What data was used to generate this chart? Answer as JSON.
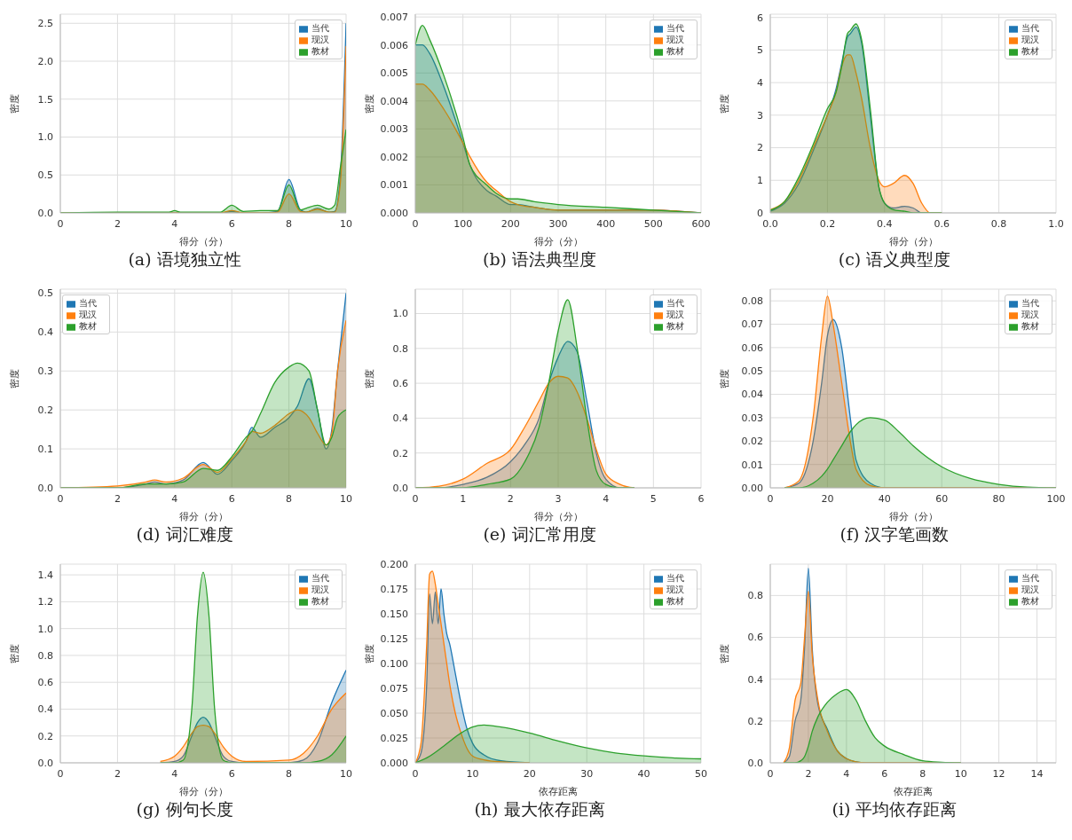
{
  "chart_data": [
    {
      "type": "area",
      "title": "(a) 语境独立性",
      "xlabel": "得分（分）",
      "ylabel": "密度",
      "xlim": [
        0,
        10
      ],
      "xticks": [
        0,
        2,
        4,
        6,
        8,
        10
      ],
      "ylim": [
        0,
        2.62
      ],
      "yticks": [
        {
          "value": 0,
          "label": "0.0"
        },
        {
          "value": 0.5,
          "label": "0.5"
        },
        {
          "value": 1,
          "label": "1.0"
        },
        {
          "value": 1.5,
          "label": "1.5"
        },
        {
          "value": 2,
          "label": "2.0"
        },
        {
          "value": 2.5,
          "label": "2.5"
        }
      ],
      "grid": true,
      "legend": "top right",
      "x": [
        0,
        2,
        3.8,
        4,
        4.2,
        5.6,
        6,
        6.4,
        7,
        7.6,
        8,
        8.4,
        8.6,
        9,
        9.4,
        9.6,
        9.8,
        10
      ],
      "series": [
        {
          "name": "当代",
          "color": "#1f77b4",
          "values": [
            0,
            0,
            0,
            0,
            0,
            0,
            0.02,
            0,
            0,
            0.02,
            0.44,
            0.04,
            0.01,
            0.06,
            0.01,
            0.02,
            0.5,
            2.5
          ]
        },
        {
          "name": "现汉",
          "color": "#ff7f0e",
          "values": [
            0,
            0,
            0,
            0,
            0,
            0,
            0.03,
            0,
            0,
            0.01,
            0.25,
            0.02,
            0.01,
            0.05,
            0.01,
            0.01,
            0.4,
            2.2
          ]
        },
        {
          "name": "教材",
          "color": "#2ca02c",
          "values": [
            0,
            0.01,
            0.01,
            0.03,
            0.01,
            0.01,
            0.1,
            0.02,
            0.03,
            0.03,
            0.37,
            0.04,
            0.06,
            0.1,
            0.05,
            0.1,
            0.6,
            1.1
          ]
        }
      ]
    },
    {
      "type": "area",
      "title": "(b) 语法典型度",
      "xlabel": "得分（分）",
      "ylabel": "密度",
      "xlim": [
        0,
        600
      ],
      "xticks": [
        0,
        100,
        200,
        300,
        400,
        500,
        600
      ],
      "ylim": [
        0,
        0.0071
      ],
      "yticks": [
        {
          "value": 0,
          "label": "0.000"
        },
        {
          "value": 0.001,
          "label": "0.001"
        },
        {
          "value": 0.002,
          "label": "0.002"
        },
        {
          "value": 0.003,
          "label": "0.003"
        },
        {
          "value": 0.004,
          "label": "0.004"
        },
        {
          "value": 0.005,
          "label": "0.005"
        },
        {
          "value": 0.006,
          "label": "0.006"
        },
        {
          "value": 0.007,
          "label": "0.007"
        }
      ],
      "grid": true,
      "legend": "top right",
      "x": [
        0,
        15,
        30,
        60,
        100,
        115,
        150,
        170,
        200,
        215,
        250,
        300,
        400,
        500,
        600
      ],
      "series": [
        {
          "name": "当代",
          "color": "#1f77b4",
          "values": [
            0.006,
            0.006,
            0.0057,
            0.0045,
            0.0025,
            0.0017,
            0.0008,
            0.0006,
            0.0003,
            0.0003,
            0.0002,
            0.0001,
            0.0001,
            0.0001,
            0
          ]
        },
        {
          "name": "现汉",
          "color": "#ff7f0e",
          "values": [
            0.0046,
            0.0046,
            0.0044,
            0.0037,
            0.0025,
            0.002,
            0.0011,
            0.0008,
            0.0004,
            0.0003,
            0.0002,
            0.0001,
            0.0001,
            0.0001,
            0
          ]
        },
        {
          "name": "教材",
          "color": "#2ca02c",
          "values": [
            0.006,
            0.0067,
            0.0062,
            0.0049,
            0.0027,
            0.0017,
            0.001,
            0.0007,
            0.0005,
            0.0005,
            0.0004,
            0.0003,
            0.0002,
            0.0001,
            0
          ]
        }
      ]
    },
    {
      "type": "area",
      "title": "(c) 语义典型度",
      "xlabel": "得分（分）",
      "ylabel": "密度",
      "xlim": [
        0,
        1
      ],
      "xticks": [
        {
          "value": 0,
          "label": "0.0"
        },
        {
          "value": 0.2,
          "label": "0.2"
        },
        {
          "value": 0.4,
          "label": "0.4"
        },
        {
          "value": 0.6,
          "label": "0.6"
        },
        {
          "value": 0.8,
          "label": "0.8"
        },
        {
          "value": 1,
          "label": "1.0"
        }
      ],
      "ylim": [
        0,
        6.1
      ],
      "yticks": [
        0,
        1,
        2,
        3,
        4,
        5,
        6
      ],
      "grid": true,
      "legend": "top right",
      "x": [
        0,
        0.05,
        0.1,
        0.15,
        0.2,
        0.23,
        0.25,
        0.27,
        0.28,
        0.3,
        0.32,
        0.35,
        0.38,
        0.4,
        0.43,
        0.47,
        0.5,
        0.53,
        0.56,
        0.6
      ],
      "series": [
        {
          "name": "当代",
          "color": "#1f77b4",
          "values": [
            0.05,
            0.3,
            0.9,
            1.9,
            3.0,
            3.8,
            4.6,
            5.4,
            5.5,
            5.7,
            5.2,
            3.0,
            0.8,
            0.3,
            0.15,
            0.2,
            0.15,
            0,
            0,
            0
          ]
        },
        {
          "name": "现汉",
          "color": "#ff7f0e",
          "values": [
            0.1,
            0.35,
            1.0,
            2.0,
            3.0,
            3.7,
            4.5,
            4.85,
            4.85,
            4.3,
            3.5,
            2.0,
            1.0,
            0.8,
            0.9,
            1.15,
            0.9,
            0.3,
            0,
            0
          ]
        },
        {
          "name": "教材",
          "color": "#2ca02c",
          "values": [
            0.08,
            0.35,
            1.1,
            2.1,
            3.2,
            3.7,
            4.5,
            5.5,
            5.6,
            5.8,
            5.3,
            3.2,
            0.8,
            0.3,
            0.1,
            0.05,
            0,
            0,
            0,
            0
          ]
        }
      ]
    },
    {
      "type": "area",
      "title": "(d) 词汇难度",
      "xlabel": "得分（分）",
      "ylabel": "密度",
      "xlim": [
        0,
        10
      ],
      "xticks": [
        0,
        2,
        4,
        6,
        8,
        10
      ],
      "ylim": [
        0,
        0.51
      ],
      "yticks": [
        {
          "value": 0,
          "label": "0.0"
        },
        {
          "value": 0.1,
          "label": "0.1"
        },
        {
          "value": 0.2,
          "label": "0.2"
        },
        {
          "value": 0.3,
          "label": "0.3"
        },
        {
          "value": 0.4,
          "label": "0.4"
        },
        {
          "value": 0.5,
          "label": "0.5"
        }
      ],
      "grid": true,
      "legend": "top left",
      "x": [
        0,
        2,
        3,
        3.3,
        3.7,
        4.3,
        5,
        5.5,
        6,
        6.5,
        6.7,
        7,
        7.5,
        8,
        8.3,
        8.7,
        9,
        9.3,
        9.5,
        9.7,
        10
      ],
      "series": [
        {
          "name": "当代",
          "color": "#1f77b4",
          "values": [
            0,
            0,
            0.01,
            0.015,
            0.01,
            0.02,
            0.065,
            0.035,
            0.07,
            0.12,
            0.155,
            0.13,
            0.155,
            0.18,
            0.21,
            0.28,
            0.2,
            0.1,
            0.15,
            0.3,
            0.5
          ]
        },
        {
          "name": "现汉",
          "color": "#ff7f0e",
          "values": [
            0,
            0.005,
            0.015,
            0.02,
            0.015,
            0.025,
            0.06,
            0.04,
            0.075,
            0.12,
            0.145,
            0.14,
            0.16,
            0.19,
            0.2,
            0.18,
            0.14,
            0.11,
            0.14,
            0.3,
            0.43
          ]
        },
        {
          "name": "教材",
          "color": "#2ca02c",
          "values": [
            0,
            0,
            0.01,
            0.01,
            0.01,
            0.015,
            0.05,
            0.045,
            0.08,
            0.13,
            0.145,
            0.19,
            0.27,
            0.31,
            0.32,
            0.3,
            0.2,
            0.11,
            0.13,
            0.18,
            0.2
          ]
        }
      ]
    },
    {
      "type": "area",
      "title": "(e) 词汇常用度",
      "xlabel": "得分（分）",
      "ylabel": "密度",
      "xlim": [
        0,
        6
      ],
      "xticks": [
        0,
        1,
        2,
        3,
        4,
        5,
        6
      ],
      "ylim": [
        0,
        1.14
      ],
      "yticks": [
        {
          "value": 0,
          "label": "0.0"
        },
        {
          "value": 0.2,
          "label": "0.2"
        },
        {
          "value": 0.4,
          "label": "0.4"
        },
        {
          "value": 0.6,
          "label": "0.6"
        },
        {
          "value": 0.8,
          "label": "0.8"
        },
        {
          "value": 1,
          "label": "1.0"
        }
      ],
      "grid": true,
      "legend": "top right",
      "x": [
        0,
        0.5,
        1,
        1.5,
        2,
        2.3,
        2.6,
        2.8,
        3,
        3.2,
        3.4,
        3.6,
        3.8,
        4,
        4.3,
        4.6
      ],
      "series": [
        {
          "name": "当代",
          "color": "#1f77b4",
          "values": [
            0,
            0,
            0.02,
            0.06,
            0.15,
            0.25,
            0.4,
            0.6,
            0.75,
            0.84,
            0.78,
            0.5,
            0.2,
            0.05,
            0,
            0
          ]
        },
        {
          "name": "现汉",
          "color": "#ff7f0e",
          "values": [
            0,
            0.01,
            0.05,
            0.14,
            0.22,
            0.35,
            0.5,
            0.6,
            0.64,
            0.63,
            0.55,
            0.4,
            0.22,
            0.08,
            0.02,
            0
          ]
        },
        {
          "name": "教材",
          "color": "#2ca02c",
          "values": [
            0,
            0,
            0,
            0.02,
            0.05,
            0.15,
            0.35,
            0.6,
            0.9,
            1.08,
            0.8,
            0.4,
            0.1,
            0.02,
            0,
            0
          ]
        }
      ]
    },
    {
      "type": "area",
      "title": "(f) 汉字笔画数",
      "xlabel": "得分（分）",
      "ylabel": "密度",
      "xlim": [
        0,
        100
      ],
      "xticks": [
        0,
        20,
        40,
        60,
        80,
        100
      ],
      "ylim": [
        0,
        0.085
      ],
      "yticks": [
        {
          "value": 0,
          "label": "0.00"
        },
        {
          "value": 0.01,
          "label": "0.01"
        },
        {
          "value": 0.02,
          "label": "0.02"
        },
        {
          "value": 0.03,
          "label": "0.03"
        },
        {
          "value": 0.04,
          "label": "0.04"
        },
        {
          "value": 0.05,
          "label": "0.05"
        },
        {
          "value": 0.06,
          "label": "0.06"
        },
        {
          "value": 0.07,
          "label": "0.07"
        },
        {
          "value": 0.08,
          "label": "0.08"
        }
      ],
      "grid": true,
      "legend": "top right",
      "x": [
        5,
        10,
        15,
        18,
        20,
        22,
        25,
        28,
        30,
        35,
        40,
        45,
        50,
        55,
        60,
        70,
        80,
        90,
        100
      ],
      "series": [
        {
          "name": "当代",
          "color": "#1f77b4",
          "values": [
            0,
            0.002,
            0.02,
            0.045,
            0.065,
            0.072,
            0.06,
            0.03,
            0.012,
            0.002,
            0,
            0,
            0,
            0,
            0,
            0,
            0,
            0,
            0
          ]
        },
        {
          "name": "现汉",
          "color": "#ff7f0e",
          "values": [
            0,
            0.003,
            0.03,
            0.065,
            0.082,
            0.07,
            0.045,
            0.02,
            0.008,
            0.001,
            0,
            0,
            0,
            0,
            0,
            0,
            0,
            0,
            0
          ]
        },
        {
          "name": "教材",
          "color": "#2ca02c",
          "values": [
            0,
            0,
            0.002,
            0.005,
            0.008,
            0.012,
            0.018,
            0.024,
            0.027,
            0.03,
            0.029,
            0.024,
            0.018,
            0.013,
            0.009,
            0.004,
            0.0015,
            0.0003,
            0
          ]
        }
      ]
    },
    {
      "type": "area",
      "title": "(g) 例句长度",
      "xlabel": "得分（分）",
      "ylabel": "密度",
      "xlim": [
        0,
        10
      ],
      "xticks": [
        0,
        2,
        4,
        6,
        8,
        10
      ],
      "ylim": [
        0,
        1.48
      ],
      "yticks": [
        {
          "value": 0,
          "label": "0.0"
        },
        {
          "value": 0.2,
          "label": "0.2"
        },
        {
          "value": 0.4,
          "label": "0.4"
        },
        {
          "value": 0.6,
          "label": "0.6"
        },
        {
          "value": 0.8,
          "label": "0.8"
        },
        {
          "value": 1,
          "label": "1.0"
        },
        {
          "value": 1.2,
          "label": "1.2"
        },
        {
          "value": 1.4,
          "label": "1.4"
        }
      ],
      "grid": true,
      "legend": "top right",
      "x": [
        3.5,
        4,
        4.3,
        4.6,
        4.8,
        5,
        5.2,
        5.4,
        5.7,
        6,
        6.5,
        8,
        8.5,
        9,
        9.5,
        10
      ],
      "series": [
        {
          "name": "当代",
          "color": "#1f77b4",
          "values": [
            0,
            0.01,
            0.05,
            0.2,
            0.3,
            0.34,
            0.3,
            0.2,
            0.05,
            0.01,
            0,
            0,
            0.02,
            0.15,
            0.45,
            0.69
          ]
        },
        {
          "name": "现汉",
          "color": "#ff7f0e",
          "values": [
            0.01,
            0.05,
            0.12,
            0.22,
            0.27,
            0.28,
            0.27,
            0.22,
            0.12,
            0.05,
            0.01,
            0.02,
            0.07,
            0.2,
            0.4,
            0.52
          ]
        },
        {
          "name": "教材",
          "color": "#2ca02c",
          "values": [
            0,
            0,
            0.02,
            0.4,
            1.1,
            1.42,
            1.1,
            0.4,
            0.02,
            0,
            0,
            0,
            0,
            0.01,
            0.06,
            0.2
          ]
        }
      ]
    },
    {
      "type": "area",
      "title": "(h) 最大依存距离",
      "xlabel": "依存距离",
      "ylabel": "密度",
      "xlim": [
        0,
        50
      ],
      "xticks": [
        0,
        10,
        20,
        30,
        40,
        50
      ],
      "ylim": [
        0,
        0.2
      ],
      "yticks": [
        {
          "value": 0,
          "label": "0.000"
        },
        {
          "value": 0.025,
          "label": "0.025"
        },
        {
          "value": 0.05,
          "label": "0.050"
        },
        {
          "value": 0.075,
          "label": "0.075"
        },
        {
          "value": 0.1,
          "label": "0.100"
        },
        {
          "value": 0.125,
          "label": "0.125"
        },
        {
          "value": 0.15,
          "label": "0.150"
        },
        {
          "value": 0.175,
          "label": "0.175"
        },
        {
          "value": 0.2,
          "label": "0.200"
        }
      ],
      "grid": true,
      "legend": "top right",
      "series": [
        {
          "name": "当代",
          "color": "#1f77b4",
          "x": [
            0,
            1,
            2,
            2.5,
            3,
            3.5,
            4,
            4.5,
            5,
            5.5,
            6,
            7,
            8,
            9,
            10,
            12,
            15,
            20
          ],
          "values": [
            0,
            0.01,
            0.08,
            0.17,
            0.14,
            0.172,
            0.14,
            0.175,
            0.15,
            0.13,
            0.12,
            0.09,
            0.06,
            0.035,
            0.02,
            0.008,
            0.002,
            0
          ]
        },
        {
          "name": "现汉",
          "color": "#ff7f0e",
          "x": [
            0,
            1,
            2,
            2.5,
            3,
            3.5,
            4,
            4.5,
            5,
            5.5,
            6,
            7,
            8,
            9,
            10,
            12,
            15,
            20
          ],
          "values": [
            0,
            0.02,
            0.12,
            0.19,
            0.193,
            0.18,
            0.16,
            0.14,
            0.12,
            0.1,
            0.08,
            0.05,
            0.03,
            0.015,
            0.007,
            0.003,
            0.001,
            0
          ]
        },
        {
          "name": "教材",
          "color": "#2ca02c",
          "x": [
            0,
            2,
            5,
            8,
            10,
            12,
            15,
            20,
            25,
            30,
            35,
            40,
            45,
            50
          ],
          "values": [
            0,
            0.005,
            0.017,
            0.03,
            0.036,
            0.038,
            0.036,
            0.03,
            0.022,
            0.015,
            0.01,
            0.007,
            0.005,
            0.004
          ]
        }
      ]
    },
    {
      "type": "area",
      "title": "(i) 平均依存距离",
      "xlabel": "依存距离",
      "ylabel": "密度",
      "xlim": [
        0,
        15
      ],
      "xticks": [
        0,
        2,
        4,
        6,
        8,
        10,
        12,
        14
      ],
      "ylim": [
        0,
        0.95
      ],
      "yticks": [
        {
          "value": 0,
          "label": "0.0"
        },
        {
          "value": 0.2,
          "label": "0.2"
        },
        {
          "value": 0.4,
          "label": "0.4"
        },
        {
          "value": 0.6,
          "label": "0.6"
        },
        {
          "value": 0.8,
          "label": "0.8"
        }
      ],
      "grid": true,
      "legend": "top right",
      "x": [
        0.7,
        1,
        1.3,
        1.6,
        1.8,
        2,
        2.2,
        2.5,
        3,
        3.5,
        4,
        4.5,
        5,
        5.5,
        6,
        7,
        8,
        9,
        10
      ],
      "series": [
        {
          "name": "当代",
          "color": "#1f77b4",
          "values": [
            0,
            0.03,
            0.2,
            0.3,
            0.55,
            0.93,
            0.55,
            0.28,
            0.16,
            0.06,
            0.02,
            0.005,
            0,
            0,
            0,
            0,
            0,
            0,
            0
          ]
        },
        {
          "name": "现汉",
          "color": "#ff7f0e",
          "values": [
            0,
            0.07,
            0.3,
            0.38,
            0.6,
            0.82,
            0.52,
            0.3,
            0.15,
            0.06,
            0.02,
            0.005,
            0,
            0,
            0,
            0,
            0,
            0,
            0
          ]
        },
        {
          "name": "教材",
          "color": "#2ca02c",
          "values": [
            0,
            0,
            0,
            0.01,
            0.03,
            0.08,
            0.15,
            0.22,
            0.29,
            0.33,
            0.35,
            0.3,
            0.2,
            0.12,
            0.08,
            0.04,
            0.01,
            0.003,
            0
          ]
        }
      ]
    }
  ]
}
